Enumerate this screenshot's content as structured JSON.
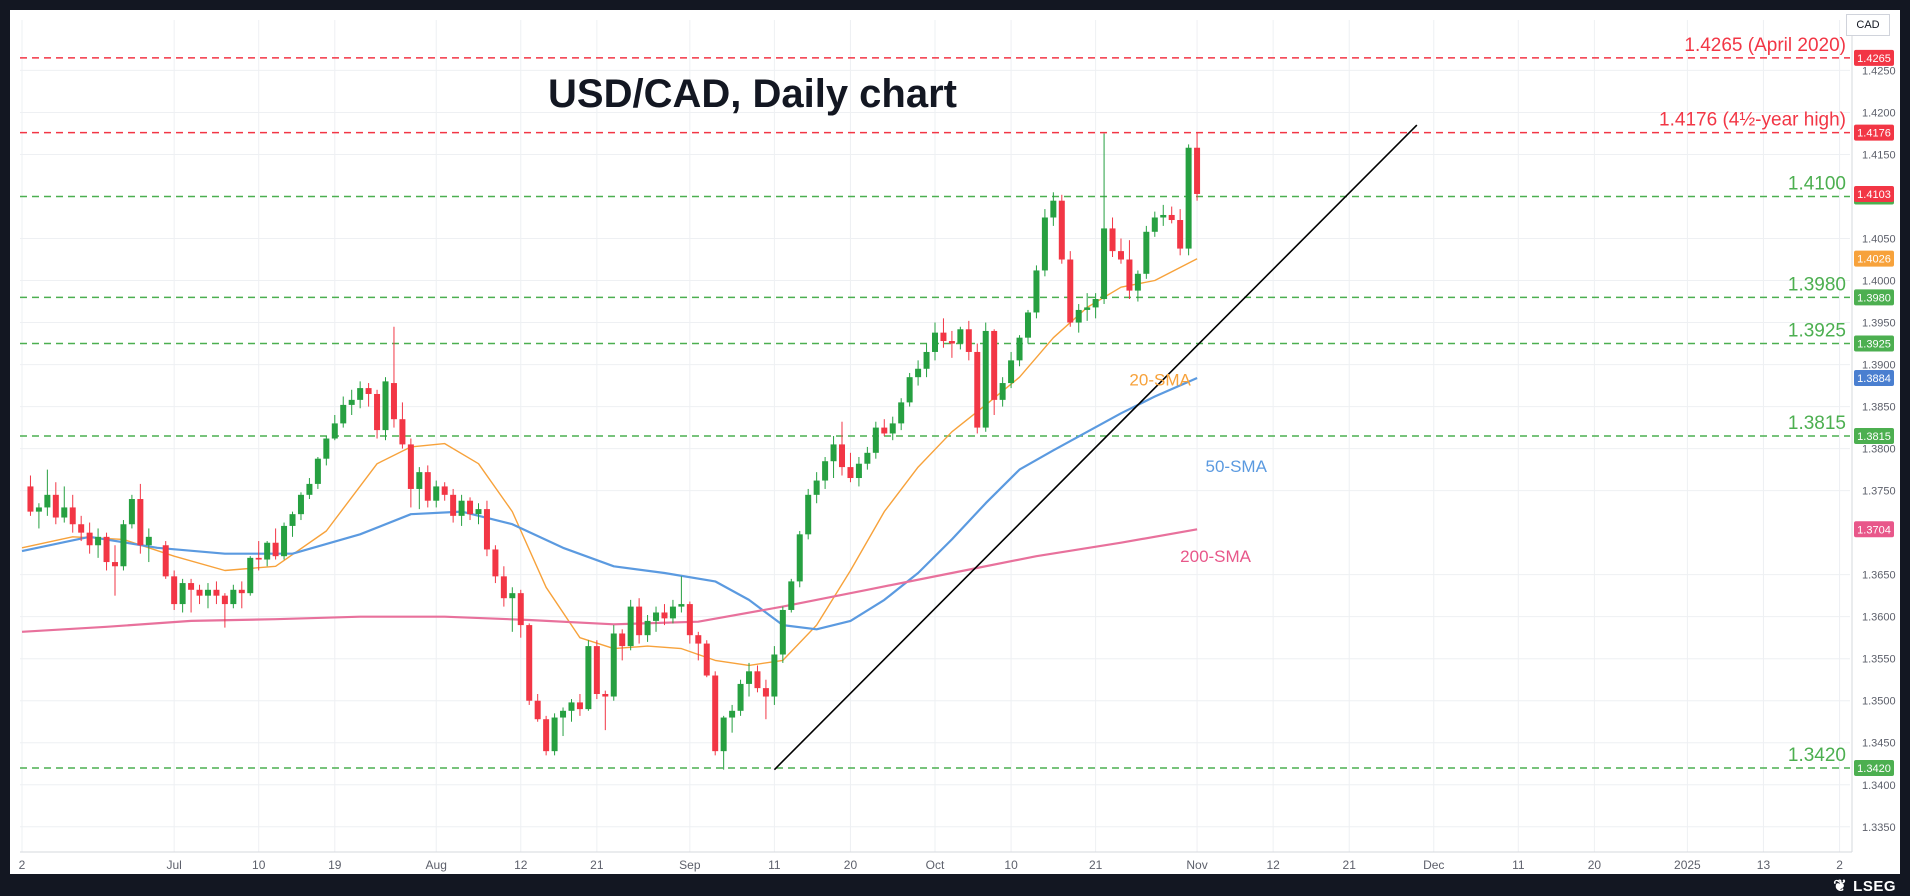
{
  "chart_data": {
    "type": "candlestick",
    "title": "USD/CAD, Daily chart",
    "currency_label": "CAD",
    "ylim": [
      1.332,
      1.431
    ],
    "y_ticks": [
      "1.4250",
      "1.4200",
      "1.4150",
      "1.4050",
      "1.4000",
      "1.3950",
      "1.3900",
      "1.3850",
      "1.3800",
      "1.3750",
      "1.3650",
      "1.3600",
      "1.3550",
      "1.3500",
      "1.3450",
      "1.3400",
      "1.3350"
    ],
    "x_ticks": [
      {
        "label": "2",
        "day": 0
      },
      {
        "label": "Jul",
        "day": 18
      },
      {
        "label": "10",
        "day": 28
      },
      {
        "label": "19",
        "day": 37
      },
      {
        "label": "Aug",
        "day": 49
      },
      {
        "label": "12",
        "day": 59
      },
      {
        "label": "21",
        "day": 68
      },
      {
        "label": "Sep",
        "day": 79
      },
      {
        "label": "11",
        "day": 89
      },
      {
        "label": "20",
        "day": 98
      },
      {
        "label": "Oct",
        "day": 108
      },
      {
        "label": "10",
        "day": 117
      },
      {
        "label": "21",
        "day": 127
      },
      {
        "label": "Nov",
        "day": 139
      },
      {
        "label": "12",
        "day": 148
      },
      {
        "label": "21",
        "day": 157
      },
      {
        "label": "Dec",
        "day": 167
      },
      {
        "label": "11",
        "day": 177
      },
      {
        "label": "20",
        "day": 186
      },
      {
        "label": "2025",
        "day": 197
      },
      {
        "label": "13",
        "day": 206
      },
      {
        "label": "2",
        "day": 215
      }
    ],
    "x_domain": [
      0,
      216
    ],
    "candles": [
      [
        1,
        1.3755,
        1.3768,
        1.372,
        1.3725
      ],
      [
        2,
        1.3725,
        1.3735,
        1.3705,
        1.373
      ],
      [
        3,
        1.373,
        1.3775,
        1.372,
        1.3745
      ],
      [
        4,
        1.3745,
        1.376,
        1.371,
        1.3718
      ],
      [
        5,
        1.3718,
        1.3755,
        1.3712,
        1.373
      ],
      [
        6,
        1.373,
        1.3745,
        1.37,
        1.371
      ],
      [
        7,
        1.371,
        1.372,
        1.369,
        1.37
      ],
      [
        8,
        1.37,
        1.3712,
        1.3675,
        1.3685
      ],
      [
        9,
        1.3685,
        1.3705,
        1.367,
        1.3695
      ],
      [
        10,
        1.3695,
        1.37,
        1.3655,
        1.3665
      ],
      [
        11,
        1.3665,
        1.3685,
        1.3625,
        1.366
      ],
      [
        12,
        1.366,
        1.3715,
        1.3655,
        1.371
      ],
      [
        13,
        1.371,
        1.3745,
        1.3705,
        1.374
      ],
      [
        14,
        1.374,
        1.3758,
        1.3675,
        1.3685
      ],
      [
        15,
        1.3685,
        1.3705,
        1.3665,
        1.3695
      ],
      [
        17,
        1.3685,
        1.369,
        1.3645,
        1.3648
      ],
      [
        18,
        1.3648,
        1.3655,
        1.3608,
        1.3615
      ],
      [
        19,
        1.3615,
        1.3645,
        1.3605,
        1.364
      ],
      [
        20,
        1.364,
        1.3645,
        1.3605,
        1.3632
      ],
      [
        21,
        1.3632,
        1.3638,
        1.3615,
        1.3625
      ],
      [
        22,
        1.3625,
        1.364,
        1.361,
        1.3632
      ],
      [
        23,
        1.3632,
        1.3642,
        1.3615,
        1.3625
      ],
      [
        24,
        1.3625,
        1.3628,
        1.3587,
        1.3615
      ],
      [
        25,
        1.3615,
        1.3638,
        1.361,
        1.3632
      ],
      [
        26,
        1.3632,
        1.3642,
        1.361,
        1.3628
      ],
      [
        27,
        1.3628,
        1.3672,
        1.3625,
        1.367
      ],
      [
        28,
        1.367,
        1.369,
        1.3655,
        1.3668
      ],
      [
        29,
        1.3668,
        1.369,
        1.366,
        1.3688
      ],
      [
        30,
        1.3688,
        1.3705,
        1.3668,
        1.3672
      ],
      [
        31,
        1.3672,
        1.3712,
        1.3668,
        1.3708
      ],
      [
        32,
        1.3708,
        1.3725,
        1.3695,
        1.3722
      ],
      [
        33,
        1.3722,
        1.3748,
        1.3715,
        1.3745
      ],
      [
        34,
        1.3745,
        1.3765,
        1.374,
        1.3758
      ],
      [
        35,
        1.3758,
        1.379,
        1.3752,
        1.3788
      ],
      [
        36,
        1.3788,
        1.3815,
        1.378,
        1.3812
      ],
      [
        37,
        1.3812,
        1.384,
        1.381,
        1.383
      ],
      [
        38,
        1.383,
        1.3862,
        1.3825,
        1.3852
      ],
      [
        39,
        1.3852,
        1.387,
        1.384,
        1.3858
      ],
      [
        40,
        1.3858,
        1.388,
        1.3848,
        1.3872
      ],
      [
        41,
        1.3872,
        1.3878,
        1.385,
        1.3865
      ],
      [
        42,
        1.3865,
        1.387,
        1.3812,
        1.3822
      ],
      [
        43,
        1.3822,
        1.3885,
        1.381,
        1.388
      ],
      [
        44,
        1.3878,
        1.3945,
        1.3825,
        1.3835
      ],
      [
        45,
        1.3835,
        1.3855,
        1.38,
        1.3805
      ],
      [
        46,
        1.3805,
        1.3812,
        1.373,
        1.3752
      ],
      [
        47,
        1.3752,
        1.3778,
        1.3728,
        1.3772
      ],
      [
        48,
        1.3772,
        1.378,
        1.373,
        1.3738
      ],
      [
        49,
        1.3738,
        1.3762,
        1.373,
        1.3755
      ],
      [
        50,
        1.3755,
        1.376,
        1.3738,
        1.3745
      ],
      [
        51,
        1.3745,
        1.3752,
        1.3712,
        1.372
      ],
      [
        52,
        1.372,
        1.3745,
        1.3708,
        1.3738
      ],
      [
        53,
        1.3738,
        1.3742,
        1.3715,
        1.3722
      ],
      [
        54,
        1.3722,
        1.3735,
        1.371,
        1.3728
      ],
      [
        55,
        1.3728,
        1.3738,
        1.3672,
        1.368
      ],
      [
        56,
        1.368,
        1.3685,
        1.364,
        1.3648
      ],
      [
        57,
        1.3648,
        1.366,
        1.3612,
        1.3622
      ],
      [
        58,
        1.3622,
        1.3635,
        1.3582,
        1.3628
      ],
      [
        59,
        1.3628,
        1.3632,
        1.3575,
        1.359
      ],
      [
        60,
        1.359,
        1.3592,
        1.3495,
        1.35
      ],
      [
        61,
        1.35,
        1.3508,
        1.3475,
        1.3478
      ],
      [
        62,
        1.3478,
        1.3482,
        1.3435,
        1.344
      ],
      [
        63,
        1.344,
        1.3485,
        1.3435,
        1.348
      ],
      [
        64,
        1.348,
        1.3492,
        1.3458,
        1.3488
      ],
      [
        65,
        1.3488,
        1.3502,
        1.3475,
        1.3498
      ],
      [
        66,
        1.3498,
        1.3508,
        1.3482,
        1.349
      ],
      [
        67,
        1.349,
        1.3572,
        1.3488,
        1.3565
      ],
      [
        68,
        1.3565,
        1.3572,
        1.3502,
        1.3508
      ],
      [
        69,
        1.3508,
        1.3512,
        1.3465,
        1.3505
      ],
      [
        70,
        1.3505,
        1.359,
        1.35,
        1.358
      ],
      [
        71,
        1.358,
        1.3585,
        1.3548,
        1.3565
      ],
      [
        72,
        1.3565,
        1.362,
        1.356,
        1.3612
      ],
      [
        73,
        1.3612,
        1.3622,
        1.3568,
        1.3578
      ],
      [
        74,
        1.3578,
        1.3602,
        1.357,
        1.3595
      ],
      [
        75,
        1.3595,
        1.3612,
        1.3582,
        1.3605
      ],
      [
        76,
        1.3605,
        1.3615,
        1.359,
        1.3598
      ],
      [
        77,
        1.3598,
        1.362,
        1.3592,
        1.3612
      ],
      [
        78,
        1.3612,
        1.3648,
        1.3605,
        1.3615
      ],
      [
        79,
        1.3615,
        1.3618,
        1.3568,
        1.3578
      ],
      [
        80,
        1.3578,
        1.3582,
        1.3548,
        1.3568
      ],
      [
        81,
        1.3568,
        1.3572,
        1.3528,
        1.353
      ],
      [
        82,
        1.353,
        1.3535,
        1.3435,
        1.344
      ],
      [
        83,
        1.344,
        1.3482,
        1.3418,
        1.348
      ],
      [
        84,
        1.348,
        1.3495,
        1.3462,
        1.3488
      ],
      [
        85,
        1.3488,
        1.3525,
        1.3482,
        1.352
      ],
      [
        86,
        1.352,
        1.3545,
        1.3505,
        1.3535
      ],
      [
        87,
        1.3535,
        1.3542,
        1.351,
        1.3515
      ],
      [
        88,
        1.3515,
        1.3525,
        1.3478,
        1.3505
      ],
      [
        89,
        1.3505,
        1.3565,
        1.3495,
        1.3555
      ],
      [
        90,
        1.3555,
        1.3612,
        1.3545,
        1.3608
      ],
      [
        91,
        1.3608,
        1.3645,
        1.3605,
        1.3642
      ],
      [
        92,
        1.3642,
        1.3702,
        1.3635,
        1.3698
      ],
      [
        93,
        1.3698,
        1.3752,
        1.3692,
        1.3745
      ],
      [
        94,
        1.3745,
        1.3772,
        1.3735,
        1.3762
      ],
      [
        95,
        1.3762,
        1.379,
        1.3752,
        1.3785
      ],
      [
        96,
        1.3785,
        1.3815,
        1.3765,
        1.3805
      ],
      [
        97,
        1.3805,
        1.3832,
        1.3768,
        1.3778
      ],
      [
        98,
        1.3778,
        1.3795,
        1.376,
        1.3765
      ],
      [
        99,
        1.3765,
        1.379,
        1.3755,
        1.3782
      ],
      [
        100,
        1.3782,
        1.3802,
        1.3775,
        1.3795
      ],
      [
        101,
        1.3795,
        1.3832,
        1.3788,
        1.3825
      ],
      [
        102,
        1.3825,
        1.3835,
        1.3815,
        1.3818
      ],
      [
        103,
        1.3818,
        1.3838,
        1.381,
        1.383
      ],
      [
        104,
        1.383,
        1.386,
        1.3822,
        1.3855
      ],
      [
        105,
        1.3855,
        1.389,
        1.385,
        1.3885
      ],
      [
        106,
        1.3885,
        1.3905,
        1.3875,
        1.3895
      ],
      [
        107,
        1.3895,
        1.3925,
        1.3885,
        1.3915
      ],
      [
        108,
        1.3915,
        1.395,
        1.3905,
        1.3938
      ],
      [
        109,
        1.3938,
        1.3955,
        1.392,
        1.3928
      ],
      [
        110,
        1.3928,
        1.394,
        1.3908,
        1.3925
      ],
      [
        111,
        1.3925,
        1.3945,
        1.3918,
        1.3942
      ],
      [
        112,
        1.3942,
        1.3952,
        1.3905,
        1.3915
      ],
      [
        113,
        1.3915,
        1.3925,
        1.3818,
        1.3825
      ],
      [
        114,
        1.3825,
        1.395,
        1.382,
        1.394
      ],
      [
        115,
        1.394,
        1.3942,
        1.384,
        1.3858
      ],
      [
        116,
        1.3858,
        1.3885,
        1.385,
        1.3878
      ],
      [
        117,
        1.3878,
        1.3915,
        1.3872,
        1.3905
      ],
      [
        118,
        1.3905,
        1.3935,
        1.3898,
        1.3932
      ],
      [
        119,
        1.3932,
        1.3965,
        1.3925,
        1.3962
      ],
      [
        120,
        1.3962,
        1.4018,
        1.3955,
        1.4012
      ],
      [
        121,
        1.4012,
        1.4085,
        1.4005,
        1.4075
      ],
      [
        122,
        1.4075,
        1.4105,
        1.4065,
        1.4095
      ],
      [
        123,
        1.4095,
        1.4102,
        1.402,
        1.4025
      ],
      [
        124,
        1.4025,
        1.4035,
        1.3945,
        1.395
      ],
      [
        125,
        1.395,
        1.3972,
        1.3938,
        1.3965
      ],
      [
        126,
        1.3965,
        1.3985,
        1.3952,
        1.3968
      ],
      [
        127,
        1.3968,
        1.3985,
        1.3955,
        1.3978
      ],
      [
        128,
        1.3978,
        1.4175,
        1.3972,
        1.4062
      ],
      [
        129,
        1.4062,
        1.4075,
        1.4028,
        1.4035
      ],
      [
        130,
        1.4035,
        1.405,
        1.402,
        1.4025
      ],
      [
        131,
        1.4025,
        1.4048,
        1.3978,
        1.3988
      ],
      [
        132,
        1.3988,
        1.4012,
        1.3975,
        1.4008
      ],
      [
        133,
        1.4008,
        1.4065,
        1.4002,
        1.4058
      ],
      [
        134,
        1.4058,
        1.4082,
        1.4052,
        1.4075
      ],
      [
        135,
        1.4075,
        1.409,
        1.4065,
        1.4078
      ],
      [
        136,
        1.4078,
        1.4088,
        1.4068,
        1.4072
      ],
      [
        137,
        1.4072,
        1.4085,
        1.403,
        1.4038
      ],
      [
        138,
        1.4038,
        1.4162,
        1.403,
        1.4158
      ],
      [
        139,
        1.4158,
        1.4176,
        1.4095,
        1.4103
      ]
    ],
    "series": [
      {
        "name": "20-SMA",
        "color": "#f7a23b",
        "x": [
          0,
          6,
          12,
          18,
          24,
          30,
          36,
          42,
          46,
          50,
          54,
          58,
          62,
          66,
          70,
          74,
          78,
          82,
          86,
          90,
          94,
          98,
          102,
          106,
          110,
          114,
          118,
          122,
          126,
          130,
          134,
          139
        ],
        "values": [
          1.3682,
          1.3695,
          1.3692,
          1.3672,
          1.3655,
          1.366,
          1.3702,
          1.3782,
          1.3802,
          1.3806,
          1.3782,
          1.3725,
          1.3635,
          1.3575,
          1.3562,
          1.3565,
          1.3562,
          1.3548,
          1.3542,
          1.3548,
          1.359,
          1.3655,
          1.3725,
          1.3778,
          1.382,
          1.3852,
          1.3885,
          1.3932,
          1.3968,
          1.3992,
          1.4,
          1.4026
        ]
      },
      {
        "name": "50-SMA",
        "color": "#5b9ae0",
        "x": [
          0,
          8,
          16,
          24,
          32,
          40,
          46,
          52,
          58,
          64,
          70,
          76,
          82,
          86,
          90,
          94,
          98,
          102,
          106,
          110,
          114,
          118,
          122,
          126,
          130,
          134,
          139
        ],
        "values": [
          1.3678,
          1.3695,
          1.3682,
          1.3675,
          1.3675,
          1.3698,
          1.3722,
          1.3725,
          1.371,
          1.3682,
          1.366,
          1.3652,
          1.3642,
          1.362,
          1.359,
          1.3585,
          1.3595,
          1.362,
          1.3652,
          1.3692,
          1.3735,
          1.3775,
          1.3798,
          1.382,
          1.3842,
          1.3862,
          1.3884
        ]
      },
      {
        "name": "200-SMA",
        "color": "#e8719c",
        "x": [
          0,
          10,
          20,
          30,
          40,
          50,
          60,
          70,
          80,
          90,
          100,
          110,
          120,
          130,
          139
        ],
        "values": [
          1.3582,
          1.3588,
          1.3595,
          1.3597,
          1.36,
          1.36,
          1.3596,
          1.3591,
          1.3594,
          1.3612,
          1.3632,
          1.3652,
          1.3672,
          1.3688,
          1.3704
        ]
      }
    ],
    "trendline": {
      "from": [
        89,
        1.3418
      ],
      "to": [
        165,
        1.4185
      ]
    },
    "levels": [
      {
        "value": 1.4265,
        "label": "1.4265 (April 2020)",
        "badge": "1.4265",
        "color": "#f23645"
      },
      {
        "value": 1.4176,
        "label": "1.4176 (4½-year high)",
        "badge": "1.4176",
        "color": "#f23645"
      },
      {
        "value": 1.41,
        "label": "1.4100",
        "badge": "1.4100",
        "color": "#4caf50"
      },
      {
        "value": 1.398,
        "label": "1.3980",
        "badge": "1.3980",
        "color": "#4caf50"
      },
      {
        "value": 1.3925,
        "label": "1.3925",
        "badge": "1.3925",
        "color": "#4caf50"
      },
      {
        "value": 1.3815,
        "label": "1.3815",
        "badge": "1.3815",
        "color": "#4caf50"
      },
      {
        "value": 1.342,
        "label": "1.3420",
        "badge": "1.3420",
        "color": "#4caf50"
      }
    ],
    "price_badges": [
      {
        "value": 1.4103,
        "label": "1.4103",
        "color": "#f23645"
      },
      {
        "value": 1.4026,
        "label": "1.4026",
        "color": "#f7a23b"
      },
      {
        "value": 1.3884,
        "label": "1.3884",
        "color": "#4a7fd0"
      },
      {
        "value": 1.3704,
        "label": "1.3704",
        "color": "#e8578a"
      }
    ],
    "annotations": [
      {
        "text": "20-SMA",
        "x": 131,
        "y": 1.3875,
        "color": "#f7a23b"
      },
      {
        "text": "50-SMA",
        "x": 140,
        "y": 1.3772,
        "color": "#5b9ae0"
      },
      {
        "text": "200-SMA",
        "x": 137,
        "y": 1.3665,
        "color": "#e8578a"
      }
    ],
    "colors": {
      "up": "#26a041",
      "down": "#f23645",
      "grid": "#eef0f3",
      "axis_text": "#131722",
      "trend": "#000000"
    }
  },
  "footer": {
    "brand": "LSEG",
    "brand_icon": "leaf-icon"
  }
}
